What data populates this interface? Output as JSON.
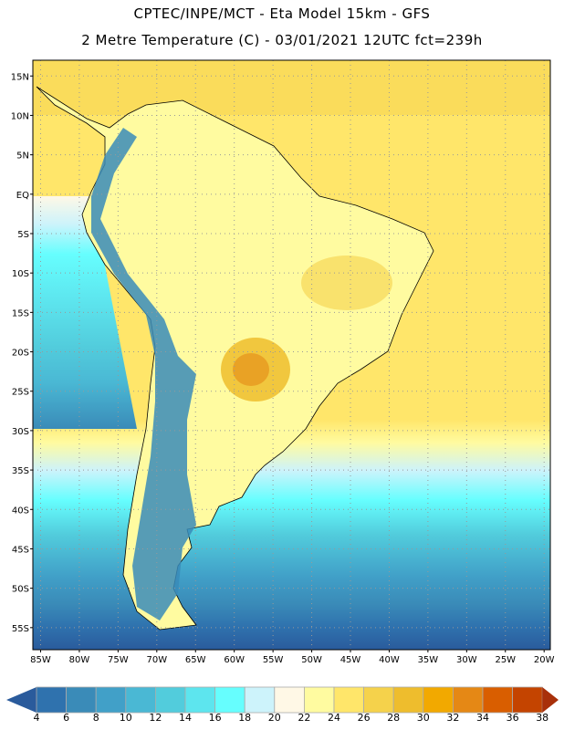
{
  "header": {
    "title": "CPTEC/INPE/MCT -  Eta Model 15km - GFS",
    "subtitle": "2 Metre Temperature (C) - 03/01/2021 12UTC fct=239h"
  },
  "map": {
    "lat_labels": [
      "15N",
      "10N",
      "5N",
      "EQ",
      "5S",
      "10S",
      "15S",
      "20S",
      "25S",
      "30S",
      "35S",
      "40S",
      "45S",
      "50S",
      "55S"
    ],
    "lon_labels": [
      "85W",
      "80W",
      "75W",
      "70W",
      "65W",
      "60W",
      "55W",
      "50W",
      "45W",
      "40W",
      "35W",
      "30W",
      "25W",
      "20W"
    ],
    "lon_range": [
      -86,
      -19.2
    ],
    "lat_range": [
      -57.8,
      17
    ]
  },
  "colorbar": {
    "labels": [
      "4",
      "6",
      "8",
      "10",
      "12",
      "14",
      "16",
      "18",
      "20",
      "22",
      "24",
      "26",
      "28",
      "30",
      "32",
      "34",
      "36",
      "38"
    ],
    "colors": [
      "#2f72ae",
      "#3a8bb8",
      "#41a0c8",
      "#4ab8d4",
      "#52ccdc",
      "#5de5ee",
      "#66fefe",
      "#cdf3fb",
      "#fff8e6",
      "#fffba0",
      "#ffe66a",
      "#f5d24b",
      "#eebd2d",
      "#f2a900",
      "#e58815",
      "#d95e00",
      "#c44400"
    ],
    "low_color": "#2a5b9c",
    "high_color": "#a8300a"
  }
}
